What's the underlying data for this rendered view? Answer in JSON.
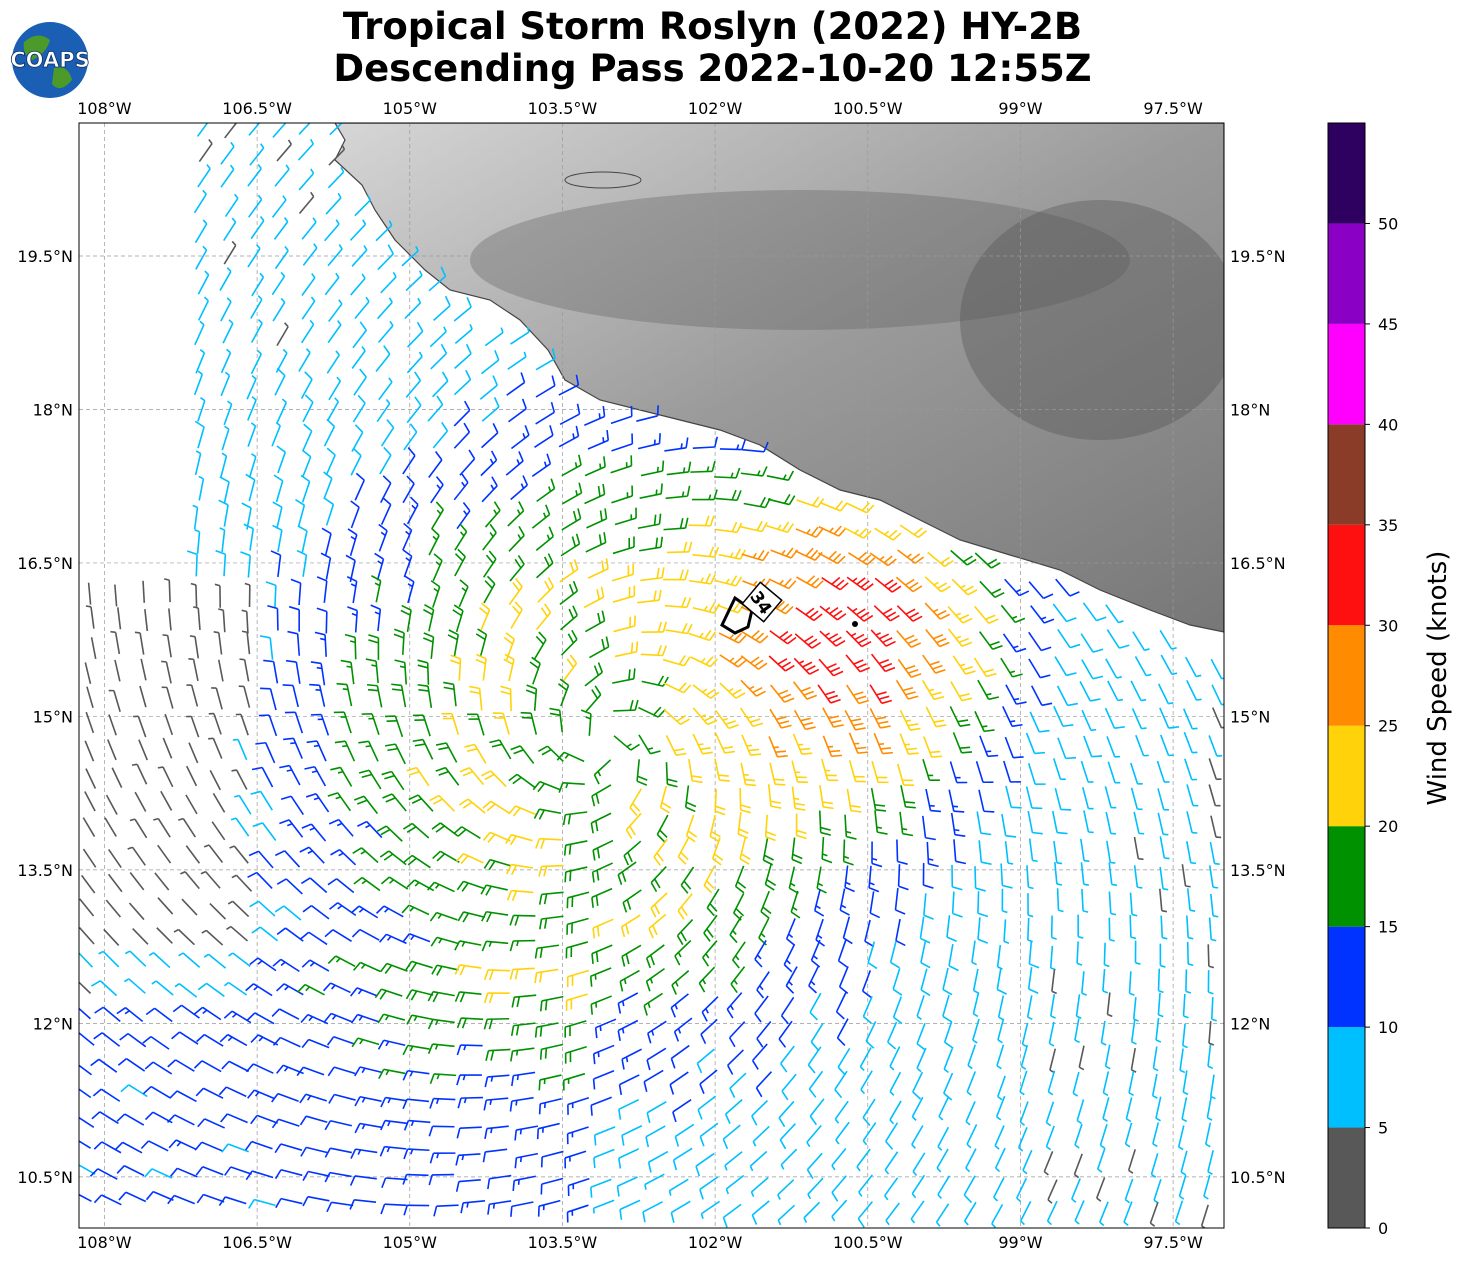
{
  "title_line1": "Tropical Storm Roslyn (2022) HY-2B",
  "title_line2": "Descending Pass 2022-10-20 12:55Z",
  "logo_text": "COAPS",
  "map": {
    "lon_ticks": [
      "108°W",
      "106.5°W",
      "105°W",
      "103.5°W",
      "102°W",
      "100.5°W",
      "99°W",
      "97.5°W"
    ],
    "lat_ticks": [
      "19.5°N",
      "18°N",
      "16.5°N",
      "15°N",
      "13.5°N",
      "12°N",
      "10.5°N"
    ],
    "lon_values": [
      -108,
      -106.5,
      -105,
      -103.5,
      -102,
      -100.5,
      -99,
      -97.5
    ],
    "lat_values": [
      19.5,
      18,
      16.5,
      15,
      13.5,
      12,
      10.5
    ],
    "lon_range": [
      -108.25,
      -97.0
    ],
    "lat_range": [
      10.0,
      20.8
    ],
    "storm_center": {
      "lon": -103.1,
      "lat": 14.75
    },
    "max_wind_point": {
      "lon": -100.5,
      "lat": 16.0
    },
    "wind_radii_label": "34",
    "land_color": "#9a9a9a",
    "ocean_color": "#ffffff",
    "grid": true
  },
  "colorbar": {
    "label": "Wind Speed (knots)",
    "ticks": [
      "0",
      "5",
      "10",
      "15",
      "20",
      "25",
      "30",
      "35",
      "40",
      "45",
      "50"
    ],
    "colors": [
      "#585858",
      "#00bfff",
      "#0033ff",
      "#009100",
      "#ffd20a",
      "#ff8c00",
      "#ff1010",
      "#8b3c28",
      "#ff00ff",
      "#8a00c4",
      "#2e0060"
    ],
    "levels": [
      0,
      5,
      10,
      15,
      20,
      25,
      30,
      35,
      40,
      45,
      50,
      55
    ]
  }
}
